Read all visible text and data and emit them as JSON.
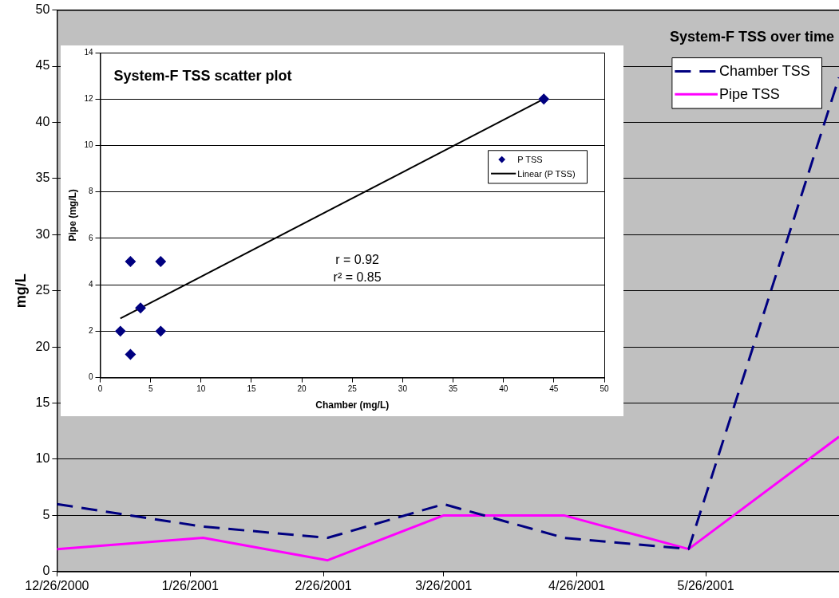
{
  "chart_data": [
    {
      "type": "line",
      "title": "System-F TSS over time",
      "ylabel": "mg/L",
      "x": [
        "2000-12-26",
        "2001-01-29",
        "2001-02-27",
        "2001-03-26",
        "2001-04-23",
        "2001-05-22",
        "2001-06-26"
      ],
      "series": [
        {
          "name": "Chamber TSS",
          "color": "#000080",
          "line_style": "dashed",
          "values": [
            6,
            4,
            3,
            6,
            3,
            2,
            44
          ]
        },
        {
          "name": "Pipe TSS",
          "color": "#ff00ff",
          "line_style": "solid",
          "values": [
            2,
            3,
            1,
            5,
            5,
            2,
            12
          ]
        }
      ],
      "xlim": [
        "2000-12-26",
        "2001-06-26"
      ],
      "xticks": [
        {
          "value": "2000-12-26",
          "label": "12/26/2000"
        },
        {
          "value": "2001-01-26",
          "label": "1/26/2001"
        },
        {
          "value": "2001-02-26",
          "label": "2/26/2001"
        },
        {
          "value": "2001-03-26",
          "label": "3/26/2001"
        },
        {
          "value": "2001-04-26",
          "label": "4/26/2001"
        },
        {
          "value": "2001-05-26",
          "label": "5/26/2001"
        }
      ],
      "ylim": [
        0,
        50
      ],
      "yticks": [
        0,
        5,
        10,
        15,
        20,
        25,
        30,
        35,
        40,
        45,
        50
      ],
      "grid": "y",
      "legend": "top right",
      "marker": "none"
    },
    {
      "type": "scatter",
      "title": "System-F TSS scatter plot",
      "xlabel": "Chamber (mg/L)",
      "ylabel": "Pipe (mg/L)",
      "series": [
        {
          "name": "P TSS",
          "type": "scatter",
          "color": "#000080",
          "marker": "diamond",
          "x": [
            6,
            4,
            3,
            6,
            3,
            2,
            44
          ],
          "values": [
            2,
            3,
            1,
            5,
            5,
            2,
            12
          ]
        },
        {
          "name": "Linear (P TSS)",
          "type": "line",
          "color": "#000000",
          "marker": "none",
          "x": [
            2,
            44
          ],
          "values": [
            2.55,
            12
          ]
        }
      ],
      "xlim": [
        0,
        50
      ],
      "xticks": [
        0,
        5,
        10,
        15,
        20,
        25,
        30,
        35,
        40,
        45,
        50
      ],
      "ylim": [
        0,
        14
      ],
      "yticks": [
        0,
        2,
        4,
        6,
        8,
        10,
        12,
        14
      ],
      "grid": "y",
      "legend": "right",
      "annotations": [
        "r = 0.92",
        "r² = 0.85"
      ]
    }
  ]
}
